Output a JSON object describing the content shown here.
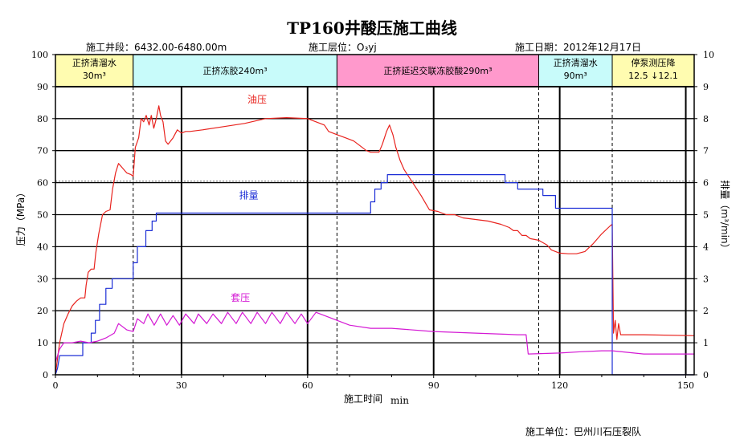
{
  "chart_data": {
    "type": "line",
    "title": "TP160井酸压施工曲线",
    "info": {
      "segment": "施工井段：6432.00-6480.00m",
      "layer": "施工层位：O₃yj",
      "date": "施工日期：2012年12月17日",
      "unit": "施工单位：巴州川石压裂队"
    },
    "xlabel": "施工时间",
    "xunit": "min",
    "ylabel_left": "压力（MPa）",
    "ylabel_right": "排量（m³/min）",
    "xlim": [
      0,
      152
    ],
    "ylim_left": [
      0,
      100
    ],
    "ylim_right": [
      0,
      10
    ],
    "xticks": [
      "0",
      "30",
      "60",
      "90",
      "120",
      "150"
    ],
    "yticks_left": [
      "0",
      "10",
      "20",
      "30",
      "40",
      "50",
      "60",
      "70",
      "80",
      "90",
      "100"
    ],
    "yticks_right": [
      "0",
      "1",
      "2",
      "3",
      "4",
      "5",
      "6",
      "7",
      "8",
      "9",
      "10"
    ],
    "stages": [
      {
        "label": "正挤清溜水",
        "sub": "30m³",
        "start": 0,
        "end": 18.5,
        "color": "#fffcb0"
      },
      {
        "label": "正挤冻胶240m³",
        "sub": "",
        "start": 18.5,
        "end": 67,
        "color": "#c8fbfa"
      },
      {
        "label": "正挤延迟交联冻胶酸290m³",
        "sub": "",
        "start": 67,
        "end": 115,
        "color": "#ff99cc"
      },
      {
        "label": "正挤清溜水",
        "sub": "90m³",
        "start": 115,
        "end": 132.5,
        "color": "#c8fbfa"
      },
      {
        "label": "停泵测压降",
        "sub": "12.5 ↓12.1",
        "start": 132.5,
        "end": 152,
        "color": "#fffcb0"
      }
    ],
    "series": [
      {
        "name": "油压",
        "axis": "left",
        "color": "#e8231e",
        "step": false,
        "points": [
          [
            0,
            0
          ],
          [
            0.5,
            5
          ],
          [
            1,
            10
          ],
          [
            2,
            16
          ],
          [
            3,
            19
          ],
          [
            4,
            21.5
          ],
          [
            5,
            23
          ],
          [
            6,
            24
          ],
          [
            7,
            24
          ],
          [
            7.3,
            28
          ],
          [
            7.8,
            32
          ],
          [
            8.5,
            33
          ],
          [
            9.2,
            33
          ],
          [
            9.6,
            38
          ],
          [
            10.3,
            44
          ],
          [
            11.2,
            50
          ],
          [
            12,
            51
          ],
          [
            13,
            51.5
          ],
          [
            13.6,
            58
          ],
          [
            14.3,
            63
          ],
          [
            15,
            66
          ],
          [
            16,
            64.5
          ],
          [
            17,
            63
          ],
          [
            18,
            62.5
          ],
          [
            18.5,
            62
          ],
          [
            19,
            71
          ],
          [
            19.8,
            74
          ],
          [
            20.4,
            80
          ],
          [
            21,
            79
          ],
          [
            21.6,
            81
          ],
          [
            22.3,
            78
          ],
          [
            22.8,
            81
          ],
          [
            23.4,
            77
          ],
          [
            24,
            80
          ],
          [
            24.6,
            84
          ],
          [
            25,
            81
          ],
          [
            25.6,
            79
          ],
          [
            26.2,
            73
          ],
          [
            26.8,
            72
          ],
          [
            28,
            74
          ],
          [
            29,
            76.5
          ],
          [
            30,
            75.5
          ],
          [
            31,
            76
          ],
          [
            32,
            76
          ],
          [
            35,
            76.5
          ],
          [
            40,
            77.5
          ],
          [
            45,
            78.5
          ],
          [
            50,
            80
          ],
          [
            55,
            80.3
          ],
          [
            60,
            80
          ],
          [
            62,
            79
          ],
          [
            64,
            78
          ],
          [
            65,
            76
          ],
          [
            67,
            75
          ],
          [
            69,
            74
          ],
          [
            71,
            73
          ],
          [
            73,
            71
          ],
          [
            74,
            70
          ],
          [
            75,
            69.5
          ],
          [
            76,
            69.5
          ],
          [
            77,
            69.5
          ],
          [
            77.8,
            72
          ],
          [
            78.8,
            76
          ],
          [
            79.5,
            78
          ],
          [
            80.3,
            75
          ],
          [
            81,
            71
          ],
          [
            82,
            67
          ],
          [
            83,
            64
          ],
          [
            85,
            60
          ],
          [
            87,
            56
          ],
          [
            89,
            51.5
          ],
          [
            91,
            51
          ],
          [
            93,
            50
          ],
          [
            95,
            50
          ],
          [
            97,
            49
          ],
          [
            100,
            48.5
          ],
          [
            103,
            48
          ],
          [
            106,
            47
          ],
          [
            108,
            46
          ],
          [
            109,
            45
          ],
          [
            110,
            45
          ],
          [
            111,
            43.5
          ],
          [
            112,
            43.5
          ],
          [
            113,
            42.5
          ],
          [
            115,
            42
          ],
          [
            117,
            40.5
          ],
          [
            118,
            39
          ],
          [
            119,
            38.5
          ],
          [
            120,
            38
          ],
          [
            122,
            37.8
          ],
          [
            124,
            37.8
          ],
          [
            126,
            38.5
          ],
          [
            128,
            41
          ],
          [
            130,
            44
          ],
          [
            132,
            46.5
          ],
          [
            132.5,
            47
          ],
          [
            132.8,
            13
          ],
          [
            133.2,
            17
          ],
          [
            133.6,
            11
          ],
          [
            134,
            16
          ],
          [
            134.5,
            12.5
          ],
          [
            135,
            12.5
          ],
          [
            140,
            12.5
          ],
          [
            152,
            12.2
          ]
        ]
      },
      {
        "name": "排量",
        "axis": "right",
        "color": "#1c2ed6",
        "step": true,
        "points": [
          [
            0,
            0
          ],
          [
            0.5,
            0.2
          ],
          [
            1,
            0.6
          ],
          [
            6.5,
            0.6
          ],
          [
            6.5,
            1
          ],
          [
            8.5,
            1
          ],
          [
            8.5,
            1.3
          ],
          [
            9.5,
            1.3
          ],
          [
            9.5,
            1.7
          ],
          [
            10.5,
            1.7
          ],
          [
            10.5,
            2.2
          ],
          [
            12,
            2.2
          ],
          [
            12,
            2.7
          ],
          [
            13.5,
            2.7
          ],
          [
            13.5,
            3
          ],
          [
            18.5,
            3
          ],
          [
            18.5,
            3.5
          ],
          [
            19.5,
            3.5
          ],
          [
            19.5,
            4
          ],
          [
            21.5,
            4
          ],
          [
            21.5,
            4.5
          ],
          [
            23,
            4.5
          ],
          [
            23,
            4.8
          ],
          [
            24,
            4.8
          ],
          [
            24,
            5.05
          ],
          [
            30,
            5.05
          ],
          [
            60,
            5.05
          ],
          [
            75,
            5.05
          ],
          [
            75,
            5.4
          ],
          [
            76,
            5.4
          ],
          [
            76,
            5.8
          ],
          [
            77.5,
            5.8
          ],
          [
            77.5,
            6
          ],
          [
            79,
            6
          ],
          [
            79,
            6.25
          ],
          [
            107,
            6.25
          ],
          [
            107,
            6
          ],
          [
            110,
            6
          ],
          [
            110,
            5.8
          ],
          [
            116,
            5.8
          ],
          [
            116,
            5.6
          ],
          [
            119,
            5.6
          ],
          [
            119,
            5.2
          ],
          [
            132.5,
            5.2
          ],
          [
            132.5,
            0
          ],
          [
            152,
            0
          ]
        ]
      },
      {
        "name": "套压",
        "axis": "left",
        "color": "#d419d4",
        "step": false,
        "points": [
          [
            0,
            4
          ],
          [
            1,
            8
          ],
          [
            2,
            10
          ],
          [
            4,
            10
          ],
          [
            6,
            10.5
          ],
          [
            8,
            10
          ],
          [
            10,
            10.5
          ],
          [
            12,
            11.5
          ],
          [
            14,
            13
          ],
          [
            15,
            16
          ],
          [
            17,
            14
          ],
          [
            18.5,
            13.5
          ],
          [
            19.5,
            17.5
          ],
          [
            21,
            16
          ],
          [
            22,
            19
          ],
          [
            23.5,
            15.5
          ],
          [
            25,
            19
          ],
          [
            26.5,
            15.5
          ],
          [
            28,
            18.5
          ],
          [
            29.5,
            15.5
          ],
          [
            31,
            19
          ],
          [
            33,
            16
          ],
          [
            34,
            19
          ],
          [
            36,
            16
          ],
          [
            37.5,
            19
          ],
          [
            39.5,
            16
          ],
          [
            41,
            19.5
          ],
          [
            43,
            16
          ],
          [
            44.5,
            19.5
          ],
          [
            46.5,
            16
          ],
          [
            48,
            19.5
          ],
          [
            50,
            16
          ],
          [
            51.5,
            19.5
          ],
          [
            53.5,
            16
          ],
          [
            55,
            19.5
          ],
          [
            57,
            16
          ],
          [
            58.5,
            19
          ],
          [
            60,
            16
          ],
          [
            62,
            19.5
          ],
          [
            65,
            18
          ],
          [
            70,
            15.5
          ],
          [
            75,
            14.5
          ],
          [
            80,
            14.5
          ],
          [
            90,
            13.5
          ],
          [
            100,
            13
          ],
          [
            110,
            12.5
          ],
          [
            112,
            12.5
          ],
          [
            112.5,
            6.5
          ],
          [
            120,
            6.8
          ],
          [
            125,
            7.2
          ],
          [
            130,
            7.5
          ],
          [
            132.5,
            7.5
          ],
          [
            140,
            6.5
          ],
          [
            152,
            6.5
          ]
        ]
      }
    ],
    "series_labels": [
      {
        "text": "油压",
        "x": 48,
        "y": 85,
        "color": "#e8231e"
      },
      {
        "text": "排量",
        "x": 46,
        "y": 55,
        "color": "#1c2ed6"
      },
      {
        "text": "套压",
        "x": 44,
        "y": 23,
        "color": "#d419d4"
      }
    ],
    "stage_dividers": [
      18.5,
      67,
      115,
      132.5
    ],
    "major_vlines": [
      30,
      60,
      90,
      120,
      150
    ],
    "grid": true
  }
}
